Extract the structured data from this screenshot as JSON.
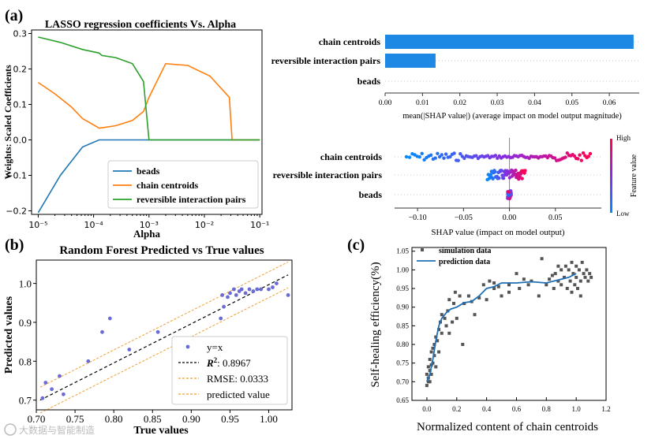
{
  "watermark": "大数据与智能制造",
  "chart_data": [
    {
      "id": "a_left",
      "panel_label": "(a)",
      "type": "line",
      "title": "LASSO regression coefficients Vs. Alpha",
      "xlabel": "Alpha",
      "ylabel": "Weights: Scaled Coefficients",
      "xscale": "log",
      "xlim_exp": [
        -5,
        -1
      ],
      "x_ticks": [
        "10⁻⁵",
        "10⁻⁴",
        "10⁻³",
        "10⁻²",
        "10⁻¹"
      ],
      "ylim": [
        -0.21,
        0.31
      ],
      "y_ticks": [
        "−0.2",
        "−0.1",
        "0.0",
        "0.1",
        "0.2",
        "0.3"
      ],
      "y_tick_values": [
        -0.2,
        -0.1,
        0.0,
        0.1,
        0.2,
        0.3
      ],
      "legend_position": "lower-right",
      "series": [
        {
          "name": "beads",
          "color": "#1f77b4",
          "log10_alpha": [
            -5,
            -4.6,
            -4.2,
            -3.9,
            -3.3,
            -2,
            -1
          ],
          "values": [
            -0.205,
            -0.1,
            -0.02,
            0.0,
            0.0,
            0.0,
            0.0
          ]
        },
        {
          "name": "chain centroids",
          "color": "#ff7f0e",
          "log10_alpha": [
            -5,
            -4.7,
            -4.4,
            -4.2,
            -3.95,
            -3.9,
            -3.6,
            -3.3,
            -3.1,
            -3.0,
            -2.7,
            -2.3,
            -1.9,
            -1.55,
            -1.5,
            -1.0
          ],
          "values": [
            0.162,
            0.13,
            0.093,
            0.06,
            0.038,
            0.033,
            0.04,
            0.055,
            0.08,
            0.12,
            0.215,
            0.21,
            0.18,
            0.12,
            0.0,
            0.0
          ]
        },
        {
          "name": "reversible interaction pairs",
          "color": "#2ca02c",
          "log10_alpha": [
            -5,
            -4.6,
            -4.2,
            -3.9,
            -3.85,
            -3.6,
            -3.3,
            -3.1,
            -3.0,
            -1.0
          ],
          "values": [
            0.29,
            0.275,
            0.255,
            0.245,
            0.238,
            0.232,
            0.215,
            0.165,
            0.0,
            0.0
          ]
        }
      ]
    },
    {
      "id": "a_bar",
      "type": "bar",
      "orientation": "horizontal",
      "categories": [
        "chain centroids",
        "reversible interaction pairs",
        "beads"
      ],
      "values": [
        0.0665,
        0.0135,
        0.0
      ],
      "color": "#1e88e5",
      "xlabel": "mean(|SHAP value|) (average impact on model output magnitude)",
      "xlim": [
        0,
        0.068
      ],
      "x_ticks": [
        "0.00",
        "0.01",
        "0.02",
        "0.03",
        "0.04",
        "0.05",
        "0.06"
      ],
      "x_tick_values": [
        0,
        0.01,
        0.02,
        0.03,
        0.04,
        0.05,
        0.06
      ]
    },
    {
      "id": "a_beeswarm",
      "type": "scatter",
      "categories": [
        "chain centroids",
        "reversible interaction pairs",
        "beads"
      ],
      "xlabel": "SHAP value (impact on model output)",
      "xlim": [
        -0.125,
        0.1
      ],
      "x_ticks": [
        "−0.10",
        "−0.05",
        "0.00",
        "0.05"
      ],
      "x_tick_values": [
        -0.1,
        -0.05,
        0.0,
        0.05
      ],
      "colorbar": {
        "label": "Feature value",
        "high": "High",
        "low": "Low",
        "low_color": "#008bfb",
        "high_color": "#ff0052"
      },
      "rows": [
        {
          "min": -0.112,
          "max": 0.088,
          "count": 95
        },
        {
          "min": -0.024,
          "max": 0.017,
          "count": 60
        },
        {
          "min": -0.002,
          "max": 0.002,
          "count": 40
        }
      ]
    },
    {
      "id": "b",
      "panel_label": "(b)",
      "type": "scatter",
      "title": "Random Forest Predicted vs True values",
      "xlabel": "True values",
      "ylabel": "Predicted values",
      "xlim": [
        0.7,
        1.03
      ],
      "ylim": [
        0.675,
        1.06
      ],
      "x_ticks": [
        "0.70",
        "0.75",
        "0.80",
        "0.85",
        "0.90",
        "0.95",
        "1.00"
      ],
      "x_tick_values": [
        0.7,
        0.75,
        0.8,
        0.85,
        0.9,
        0.95,
        1.0
      ],
      "y_ticks": [
        "0.7",
        "0.8",
        "0.9",
        "1.0"
      ],
      "y_tick_values": [
        0.7,
        0.8,
        0.9,
        1.0
      ],
      "point_color": "#6b6bd6",
      "fit_line": {
        "x0": 0.705,
        "y0": 0.7,
        "x1": 1.025,
        "y1": 1.022
      },
      "band_offset": 0.0333,
      "band_color": "#f0a030",
      "points": [
        [
          0.708,
          0.705
        ],
        [
          0.712,
          0.745
        ],
        [
          0.72,
          0.728
        ],
        [
          0.73,
          0.762
        ],
        [
          0.735,
          0.715
        ],
        [
          0.767,
          0.8
        ],
        [
          0.785,
          0.875
        ],
        [
          0.795,
          0.91
        ],
        [
          0.82,
          0.83
        ],
        [
          0.857,
          0.875
        ],
        [
          0.938,
          0.91
        ],
        [
          0.94,
          0.97
        ],
        [
          0.942,
          0.94
        ],
        [
          0.947,
          0.965
        ],
        [
          0.95,
          0.975
        ],
        [
          0.955,
          0.985
        ],
        [
          0.958,
          0.97
        ],
        [
          0.962,
          0.98
        ],
        [
          0.965,
          0.985
        ],
        [
          0.97,
          0.975
        ],
        [
          0.975,
          0.985
        ],
        [
          0.98,
          0.98
        ],
        [
          0.985,
          0.985
        ],
        [
          0.99,
          0.985
        ],
        [
          1.0,
          0.985
        ],
        [
          1.005,
          0.99
        ],
        [
          1.01,
          1.0
        ],
        [
          1.025,
          0.97
        ]
      ],
      "legend": [
        {
          "label": "y=x",
          "kind": "marker"
        },
        {
          "label": "R²: 0.8967",
          "prefix": "R",
          "sup": "2",
          "rest": ": 0.8967",
          "kind": "dash-black"
        },
        {
          "label": "RMSE: 0.0333",
          "kind": "dash-orange"
        },
        {
          "label": "predicted value",
          "kind": "dash-orange"
        }
      ]
    },
    {
      "id": "c",
      "panel_label": "(c)",
      "type": "scatter",
      "xlabel": "Normalized content of chain centroids",
      "ylabel": "Self-healing efficiency(%)",
      "xlim": [
        -0.1,
        1.2
      ],
      "ylim": [
        0.65,
        1.06
      ],
      "x_ticks": [
        "0.0",
        "0.2",
        "0.4",
        "0.6",
        "0.8",
        "1.0",
        "1.2"
      ],
      "x_tick_values": [
        0,
        0.2,
        0.4,
        0.6,
        0.8,
        1.0,
        1.2
      ],
      "y_ticks": [
        "0.65",
        "0.70",
        "0.75",
        "0.80",
        "0.85",
        "0.90",
        "0.95",
        "1.00",
        "1.05"
      ],
      "y_tick_values": [
        0.65,
        0.7,
        0.75,
        0.8,
        0.85,
        0.9,
        0.95,
        1.0,
        1.05
      ],
      "point_color": "#555555",
      "line_color": "#1f6fb4",
      "legend": [
        "simulation data",
        "prediction data"
      ],
      "points": [
        [
          0.0,
          0.69
        ],
        [
          0.0,
          0.72
        ],
        [
          0.01,
          0.7
        ],
        [
          0.01,
          0.74
        ],
        [
          0.01,
          0.71
        ],
        [
          0.02,
          0.73
        ],
        [
          0.02,
          0.76
        ],
        [
          0.02,
          0.7
        ],
        [
          0.03,
          0.78
        ],
        [
          0.03,
          0.72
        ],
        [
          0.03,
          0.745
        ],
        [
          0.04,
          0.79
        ],
        [
          0.04,
          0.75
        ],
        [
          0.05,
          0.8
        ],
        [
          0.05,
          0.77
        ],
        [
          0.06,
          0.82
        ],
        [
          0.06,
          0.74
        ],
        [
          0.07,
          0.81
        ],
        [
          0.08,
          0.84
        ],
        [
          0.08,
          0.78
        ],
        [
          0.09,
          0.86
        ],
        [
          0.1,
          0.83
        ],
        [
          0.1,
          0.88
        ],
        [
          0.12,
          0.87
        ],
        [
          0.13,
          0.85
        ],
        [
          0.14,
          0.89
        ],
        [
          0.15,
          0.83
        ],
        [
          0.15,
          0.92
        ],
        [
          0.17,
          0.86
        ],
        [
          0.18,
          0.91
        ],
        [
          0.19,
          0.94
        ],
        [
          0.2,
          0.87
        ],
        [
          0.22,
          0.93
        ],
        [
          0.24,
          0.8
        ],
        [
          0.25,
          0.91
        ],
        [
          0.28,
          0.93
        ],
        [
          0.3,
          0.915
        ],
        [
          0.32,
          0.88
        ],
        [
          0.35,
          0.925
        ],
        [
          0.38,
          0.96
        ],
        [
          0.4,
          0.92
        ],
        [
          0.42,
          0.97
        ],
        [
          0.45,
          0.95
        ],
        [
          0.48,
          0.955
        ],
        [
          0.5,
          0.93
        ],
        [
          0.55,
          0.96
        ],
        [
          0.6,
          0.99
        ],
        [
          0.62,
          0.95
        ],
        [
          0.65,
          0.975
        ],
        [
          0.68,
          0.96
        ],
        [
          0.7,
          0.97
        ],
        [
          0.75,
          0.93
        ],
        [
          0.77,
          1.03
        ],
        [
          0.8,
          0.96
        ],
        [
          0.82,
          0.975
        ],
        [
          0.84,
          0.985
        ],
        [
          0.85,
          0.95
        ],
        [
          0.86,
          0.99
        ],
        [
          0.88,
          0.97
        ],
        [
          0.9,
          1.0
        ],
        [
          0.9,
          0.96
        ],
        [
          0.92,
          0.98
        ],
        [
          0.93,
          1.01
        ],
        [
          0.94,
          0.95
        ],
        [
          0.95,
          1.0
        ],
        [
          0.96,
          0.97
        ],
        [
          0.97,
          1.02
        ],
        [
          0.98,
          0.99
        ],
        [
          0.99,
          0.96
        ],
        [
          1.0,
          1.01
        ],
        [
          1.0,
          0.98
        ],
        [
          1.01,
          0.95
        ],
        [
          1.02,
          1.0
        ],
        [
          1.03,
          0.97
        ],
        [
          1.04,
          1.02
        ],
        [
          1.05,
          0.99
        ],
        [
          1.06,
          0.98
        ],
        [
          1.07,
          1.0
        ],
        [
          1.08,
          0.97
        ],
        [
          1.09,
          0.99
        ],
        [
          1.1,
          0.98
        ],
        [
          0.97,
          0.94
        ],
        [
          1.03,
          0.93
        ],
        [
          0.88,
          1.01
        ],
        [
          0.55,
          0.94
        ],
        [
          0.45,
          0.965
        ]
      ],
      "fit_x": [
        0.0,
        0.02,
        0.04,
        0.06,
        0.08,
        0.1,
        0.13,
        0.16,
        0.2,
        0.25,
        0.3,
        0.35,
        0.4,
        0.45,
        0.5,
        0.6,
        0.7,
        0.8,
        0.85,
        0.9,
        0.95,
        1.0
      ],
      "fit_y": [
        0.7,
        0.72,
        0.76,
        0.81,
        0.85,
        0.87,
        0.885,
        0.895,
        0.9,
        0.912,
        0.915,
        0.93,
        0.95,
        0.955,
        0.965,
        0.965,
        0.968,
        0.965,
        0.97,
        0.975,
        0.98,
        0.99
      ]
    }
  ]
}
